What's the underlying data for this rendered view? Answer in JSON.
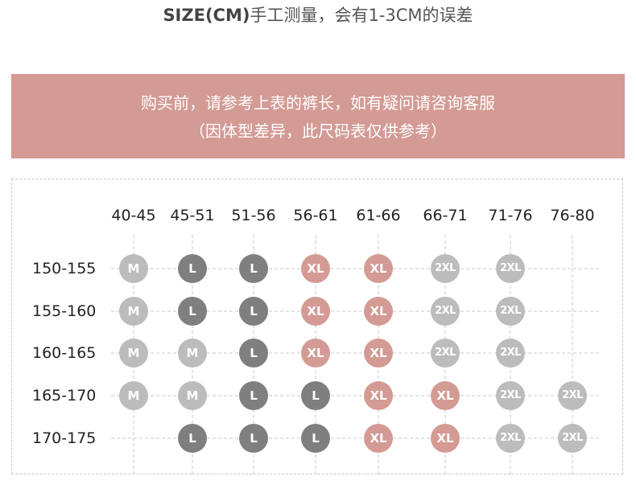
{
  "title": {
    "bold": "SIZE(CM)",
    "rest": "手工测量，会有1-3CM的误差"
  },
  "banner": {
    "line1": "购买前，请参考上表的裤长，如有疑问请咨询客服",
    "line2": "（因体型差异，此尺码表仅供参考）"
  },
  "columns": [
    "40-45",
    "45-51",
    "51-56",
    "56-61",
    "61-66",
    "66-71",
    "71-76",
    "76-80"
  ],
  "rows": [
    {
      "label": "150-155",
      "cells": [
        "M",
        "L",
        "L",
        "XL",
        "XL",
        "2XL",
        "2XL",
        ""
      ]
    },
    {
      "label": "155-160",
      "cells": [
        "M",
        "L",
        "L",
        "XL",
        "XL",
        "2XL",
        "2XL",
        ""
      ]
    },
    {
      "label": "160-165",
      "cells": [
        "M",
        "M",
        "L",
        "XL",
        "XL",
        "2XL",
        "2XL",
        ""
      ]
    },
    {
      "label": "165-170",
      "cells": [
        "M",
        "M",
        "L",
        "L",
        "XL",
        "XL",
        "2XL",
        "2XL"
      ]
    },
    {
      "label": "170-175",
      "cells": [
        "",
        "L",
        "L",
        "L",
        "XL",
        "XL",
        "2XL",
        "2XL"
      ]
    }
  ],
  "size_colors": {
    "M": "#bcbcbc",
    "L": "#7f7f7f",
    "XL": "#d49a94",
    "2XL": "#bcbcbc"
  },
  "grid_color": "#c8c8c8"
}
